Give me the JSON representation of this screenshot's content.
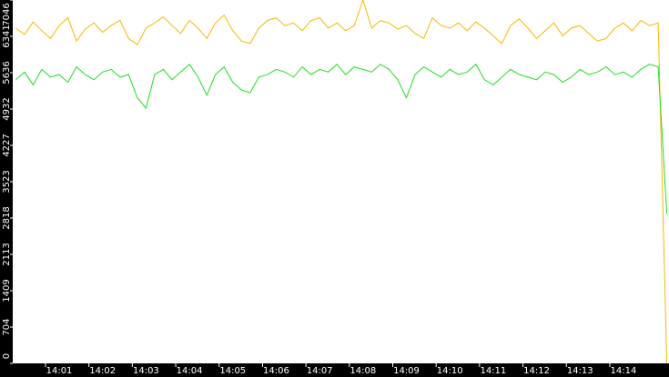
{
  "chart_data": {
    "type": "line",
    "x": [
      0,
      0.2,
      0.4,
      0.6,
      0.8,
      1,
      1.2,
      1.4,
      1.6,
      1.8,
      2,
      2.2,
      2.4,
      2.6,
      2.8,
      3,
      3.2,
      3.4,
      3.6,
      3.8,
      4,
      4.2,
      4.4,
      4.6,
      4.8,
      5,
      5.2,
      5.4,
      5.6,
      5.8,
      6,
      6.2,
      6.4,
      6.6,
      6.8,
      7,
      7.2,
      7.4,
      7.6,
      7.8,
      8,
      8.2,
      8.4,
      8.6,
      8.8,
      9,
      9.2,
      9.4,
      9.6,
      9.8,
      10,
      10.2,
      10.4,
      10.6,
      10.8,
      11,
      11.2,
      11.4,
      11.6,
      11.8,
      12,
      12.2,
      12.4,
      12.6,
      12.8,
      13,
      13.2,
      13.4,
      13.6,
      13.8,
      14,
      14.2,
      14.4,
      14.6,
      14.8,
      15
    ],
    "series": [
      {
        "color": "#f5b800",
        "values": [
          6500,
          6380,
          6620,
          6450,
          6300,
          6550,
          6700,
          6250,
          6480,
          6600,
          6420,
          6550,
          6650,
          6300,
          6180,
          6500,
          6600,
          6720,
          6550,
          6400,
          6650,
          6500,
          6300,
          6600,
          6750,
          6450,
          6250,
          6200,
          6500,
          6650,
          6700,
          6550,
          6600,
          6450,
          6650,
          6700,
          6500,
          6600,
          6450,
          6550,
          7046,
          6500,
          6650,
          6600,
          6480,
          6550,
          6400,
          6300,
          6700,
          6550,
          6500,
          6600,
          6450,
          6620,
          6500,
          6350,
          6200,
          6550,
          6680,
          6500,
          6300,
          6450,
          6600,
          6350,
          6500,
          6550,
          6400,
          6250,
          6300,
          6500,
          6600,
          6450,
          6650,
          6550,
          6600,
          0
        ]
      },
      {
        "color": "#22dd22",
        "values": [
          5500,
          5650,
          5400,
          5700,
          5550,
          5600,
          5450,
          5750,
          5600,
          5500,
          5650,
          5700,
          5550,
          5600,
          5150,
          4950,
          5600,
          5700,
          5500,
          5650,
          5800,
          5550,
          5200,
          5600,
          5750,
          5450,
          5300,
          5250,
          5550,
          5600,
          5700,
          5650,
          5550,
          5750,
          5600,
          5700,
          5650,
          5800,
          5600,
          5750,
          5700,
          5650,
          5800,
          5700,
          5500,
          5150,
          5600,
          5750,
          5650,
          5550,
          5700,
          5600,
          5650,
          5800,
          5500,
          5400,
          5550,
          5700,
          5600,
          5550,
          5500,
          5650,
          5600,
          5450,
          5550,
          5700,
          5600,
          5650,
          5750,
          5600,
          5650,
          5550,
          5700,
          5800,
          5750,
          2900
        ]
      }
    ],
    "xlim": [
      -0.07,
      15.05
    ],
    "xticks": [
      {
        "value": 1,
        "label": "14:01"
      },
      {
        "value": 2,
        "label": "14:02"
      },
      {
        "value": 3,
        "label": "14:03"
      },
      {
        "value": 4,
        "label": "14:04"
      },
      {
        "value": 5,
        "label": "14:05"
      },
      {
        "value": 6,
        "label": "14:06"
      },
      {
        "value": 7,
        "label": "14:07"
      },
      {
        "value": 8,
        "label": "14:08"
      },
      {
        "value": 9,
        "label": "14:09"
      },
      {
        "value": 10,
        "label": "14:10"
      },
      {
        "value": 11,
        "label": "14:11"
      },
      {
        "value": 12,
        "label": "14:12"
      },
      {
        "value": 13,
        "label": "14:13"
      },
      {
        "value": 14,
        "label": "14:14"
      }
    ],
    "ylim": [
      0,
      7046
    ],
    "yticks": [
      0,
      704,
      1409,
      2113,
      2818,
      3523,
      4227,
      4932,
      5636,
      6341,
      7046
    ]
  }
}
